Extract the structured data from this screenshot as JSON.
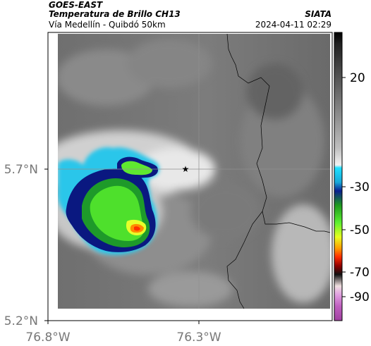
{
  "header": {
    "satellite": "GOES-EAST",
    "product": "Temperatura de Brillo CH13",
    "region": "Vía Medellín - Quibdó 50km",
    "agency": "SIATA",
    "datetime": "2024-04-11 02:29"
  },
  "axes": {
    "y_ticks": [
      "5.7°N",
      "5.2°N"
    ],
    "x_ticks": [
      "76.8°W",
      "76.3°W"
    ]
  },
  "colorbar": {
    "ticks": [
      "20",
      "-30",
      "-50",
      "-70",
      "-90"
    ]
  },
  "marker": {
    "symbol": "★",
    "name": "station-star"
  }
}
